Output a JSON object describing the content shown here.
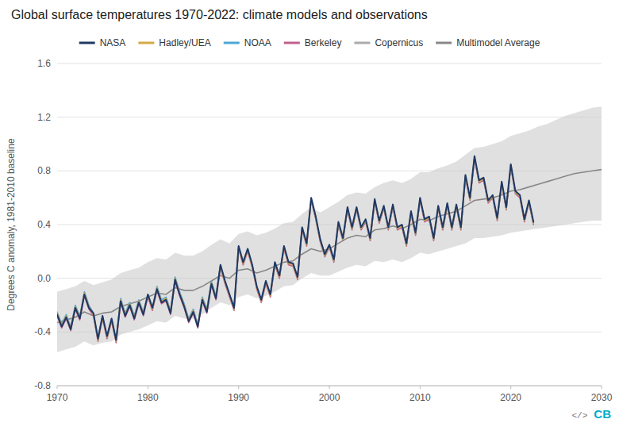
{
  "chart_data": {
    "type": "line",
    "title": "Global surface temperatures 1970-2022: climate models and observations",
    "ylabel": "Degrees C anomaly, 1981-2010 baseline",
    "xlim": [
      1970,
      2030
    ],
    "ylim": [
      -0.8,
      1.6
    ],
    "xticks": [
      1970,
      1980,
      1990,
      2000,
      2010,
      2020,
      2030
    ],
    "yticks": [
      -0.8,
      -0.4,
      {
        "value": 0.0,
        "label": "0.0"
      },
      0.4,
      0.8,
      1.2,
      1.6
    ],
    "grid": true,
    "legend": "top",
    "annotations": [
      "</>",
      "CB"
    ],
    "x": [
      1970.0,
      1970.5,
      1971.0,
      1971.5,
      1972.0,
      1972.5,
      1973.0,
      1973.5,
      1974.0,
      1974.5,
      1975.0,
      1975.5,
      1976.0,
      1976.5,
      1977.0,
      1977.5,
      1978.0,
      1978.5,
      1979.0,
      1979.5,
      1980.0,
      1980.5,
      1981.0,
      1981.5,
      1982.0,
      1982.5,
      1983.0,
      1983.5,
      1984.0,
      1984.5,
      1985.0,
      1985.5,
      1986.0,
      1986.5,
      1987.0,
      1987.5,
      1988.0,
      1988.5,
      1989.0,
      1989.5,
      1990.0,
      1990.5,
      1991.0,
      1991.5,
      1992.0,
      1992.5,
      1993.0,
      1993.5,
      1994.0,
      1994.5,
      1995.0,
      1995.5,
      1996.0,
      1996.5,
      1997.0,
      1997.5,
      1998.0,
      1998.5,
      1999.0,
      1999.5,
      2000.0,
      2000.5,
      2001.0,
      2001.5,
      2002.0,
      2002.5,
      2003.0,
      2003.5,
      2004.0,
      2004.5,
      2005.0,
      2005.5,
      2006.0,
      2006.5,
      2007.0,
      2007.5,
      2008.0,
      2008.5,
      2009.0,
      2009.5,
      2010.0,
      2010.5,
      2011.0,
      2011.5,
      2012.0,
      2012.5,
      2013.0,
      2013.5,
      2014.0,
      2014.5,
      2015.0,
      2015.5,
      2016.0,
      2016.5,
      2017.0,
      2017.5,
      2018.0,
      2018.5,
      2019.0,
      2019.5,
      2020.0,
      2020.5,
      2021.0,
      2021.5,
      2022.0,
      2022.5
    ],
    "band": {
      "color": "#cccccc",
      "x": [
        1970,
        1971,
        1972,
        1973,
        1974,
        1975,
        1976,
        1977,
        1978,
        1979,
        1980,
        1981,
        1982,
        1983,
        1984,
        1985,
        1986,
        1987,
        1988,
        1989,
        1990,
        1991,
        1992,
        1993,
        1994,
        1995,
        1996,
        1997,
        1998,
        1999,
        2000,
        2001,
        2002,
        2003,
        2004,
        2005,
        2006,
        2007,
        2008,
        2009,
        2010,
        2011,
        2012,
        2013,
        2014,
        2015,
        2016,
        2017,
        2018,
        2019,
        2020,
        2021,
        2022,
        2023,
        2024,
        2025,
        2026,
        2027,
        2028,
        2029,
        2030
      ],
      "upper": [
        -0.1,
        -0.08,
        -0.06,
        -0.02,
        -0.05,
        -0.03,
        -0.01,
        0.04,
        0.06,
        0.08,
        0.12,
        0.15,
        0.14,
        0.19,
        0.17,
        0.17,
        0.2,
        0.25,
        0.29,
        0.26,
        0.33,
        0.35,
        0.32,
        0.34,
        0.37,
        0.41,
        0.42,
        0.48,
        0.53,
        0.49,
        0.53,
        0.57,
        0.62,
        0.64,
        0.63,
        0.68,
        0.71,
        0.73,
        0.71,
        0.74,
        0.79,
        0.79,
        0.82,
        0.84,
        0.87,
        0.92,
        0.97,
        0.98,
        1.0,
        1.02,
        1.06,
        1.08,
        1.1,
        1.13,
        1.15,
        1.18,
        1.21,
        1.23,
        1.25,
        1.27,
        1.28
      ],
      "lower": [
        -0.55,
        -0.53,
        -0.51,
        -0.47,
        -0.5,
        -0.48,
        -0.47,
        -0.42,
        -0.4,
        -0.38,
        -0.35,
        -0.32,
        -0.33,
        -0.28,
        -0.3,
        -0.3,
        -0.27,
        -0.22,
        -0.18,
        -0.2,
        -0.14,
        -0.12,
        -0.15,
        -0.13,
        -0.1,
        -0.06,
        -0.05,
        0.0,
        0.04,
        0.02,
        0.02,
        0.05,
        0.08,
        0.1,
        0.09,
        0.13,
        0.12,
        0.14,
        0.12,
        0.15,
        0.19,
        0.18,
        0.2,
        0.22,
        0.24,
        0.26,
        0.3,
        0.3,
        0.31,
        0.32,
        0.34,
        0.35,
        0.36,
        0.37,
        0.38,
        0.39,
        0.4,
        0.41,
        0.42,
        0.43,
        0.43
      ]
    },
    "series": [
      {
        "name": "NASA",
        "color": "#1f3864",
        "values": [
          -0.27,
          -0.36,
          -0.29,
          -0.38,
          -0.22,
          -0.3,
          -0.12,
          -0.22,
          -0.26,
          -0.45,
          -0.28,
          -0.43,
          -0.3,
          -0.46,
          -0.17,
          -0.28,
          -0.2,
          -0.3,
          -0.18,
          -0.27,
          -0.12,
          -0.22,
          -0.08,
          -0.18,
          -0.16,
          -0.26,
          -0.01,
          -0.12,
          -0.21,
          -0.32,
          -0.25,
          -0.36,
          -0.16,
          -0.25,
          -0.04,
          -0.15,
          0.1,
          -0.02,
          -0.12,
          -0.22,
          0.24,
          0.12,
          0.22,
          0.1,
          -0.06,
          -0.16,
          -0.02,
          -0.12,
          0.12,
          0.02,
          0.24,
          0.12,
          0.11,
          0.01,
          0.38,
          0.26,
          0.6,
          0.46,
          0.29,
          0.18,
          0.25,
          0.14,
          0.42,
          0.3,
          0.53,
          0.38,
          0.53,
          0.38,
          0.44,
          0.3,
          0.59,
          0.43,
          0.54,
          0.38,
          0.55,
          0.38,
          0.4,
          0.26,
          0.5,
          0.34,
          0.6,
          0.44,
          0.46,
          0.3,
          0.54,
          0.38,
          0.56,
          0.38,
          0.55,
          0.38,
          0.77,
          0.6,
          0.91,
          0.73,
          0.75,
          0.58,
          0.62,
          0.45,
          0.72,
          0.53,
          0.85,
          0.65,
          0.62,
          0.44,
          0.58,
          0.42
        ]
      },
      {
        "name": "Hadley/UEA",
        "color": "#d4a843",
        "values": [
          -0.26,
          -0.35,
          -0.28,
          -0.37,
          -0.21,
          -0.29,
          -0.11,
          -0.21,
          -0.27,
          -0.46,
          -0.29,
          -0.44,
          -0.31,
          -0.47,
          -0.16,
          -0.27,
          -0.19,
          -0.29,
          -0.17,
          -0.26,
          -0.13,
          -0.23,
          -0.07,
          -0.17,
          -0.15,
          -0.25,
          -0.0,
          -0.11,
          -0.2,
          -0.31,
          -0.24,
          -0.35,
          -0.15,
          -0.24,
          -0.03,
          -0.14,
          0.09,
          -0.03,
          -0.13,
          -0.23,
          0.23,
          0.11,
          0.21,
          0.09,
          -0.07,
          -0.17,
          -0.03,
          -0.13,
          0.11,
          0.01,
          0.23,
          0.11,
          0.1,
          0.0,
          0.37,
          0.25,
          0.59,
          0.45,
          0.28,
          0.17,
          0.24,
          0.13,
          0.41,
          0.29,
          0.52,
          0.37,
          0.52,
          0.37,
          0.43,
          0.29,
          0.58,
          0.42,
          0.53,
          0.37,
          0.54,
          0.37,
          0.39,
          0.25,
          0.49,
          0.33,
          0.59,
          0.43,
          0.45,
          0.29,
          0.53,
          0.37,
          0.55,
          0.37,
          0.54,
          0.37,
          0.76,
          0.59,
          0.9,
          0.72,
          0.74,
          0.57,
          0.61,
          0.44,
          0.71,
          0.52,
          0.84,
          0.64,
          0.61,
          0.43,
          0.57,
          0.41
        ]
      },
      {
        "name": "NOAA",
        "color": "#4da6d4",
        "values": [
          -0.25,
          -0.34,
          -0.27,
          -0.36,
          -0.2,
          -0.28,
          -0.1,
          -0.2,
          -0.26,
          -0.45,
          -0.28,
          -0.43,
          -0.3,
          -0.46,
          -0.15,
          -0.26,
          -0.18,
          -0.28,
          -0.16,
          -0.25,
          -0.12,
          -0.22,
          -0.06,
          -0.16,
          -0.14,
          -0.24,
          0.01,
          -0.1,
          -0.19,
          -0.3,
          -0.23,
          -0.34,
          -0.14,
          -0.23,
          -0.02,
          -0.13,
          0.1,
          -0.02,
          -0.12,
          -0.22,
          0.24,
          0.12,
          0.22,
          0.1,
          -0.06,
          -0.16,
          -0.02,
          -0.12,
          0.12,
          0.02,
          0.24,
          0.12,
          0.11,
          0.01,
          0.38,
          0.26,
          0.59,
          0.45,
          0.28,
          0.17,
          0.24,
          0.13,
          0.41,
          0.29,
          0.52,
          0.37,
          0.52,
          0.37,
          0.43,
          0.29,
          0.58,
          0.42,
          0.53,
          0.37,
          0.54,
          0.37,
          0.39,
          0.25,
          0.49,
          0.33,
          0.59,
          0.43,
          0.45,
          0.29,
          0.53,
          0.37,
          0.55,
          0.37,
          0.54,
          0.37,
          0.76,
          0.59,
          0.9,
          0.72,
          0.74,
          0.57,
          0.61,
          0.44,
          0.71,
          0.52,
          0.84,
          0.64,
          0.61,
          0.43,
          0.57,
          0.41
        ]
      },
      {
        "name": "Berkeley",
        "color": "#c05f8e",
        "values": [
          -0.28,
          -0.37,
          -0.3,
          -0.39,
          -0.23,
          -0.31,
          -0.13,
          -0.23,
          -0.28,
          -0.47,
          -0.3,
          -0.45,
          -0.32,
          -0.48,
          -0.18,
          -0.29,
          -0.21,
          -0.31,
          -0.19,
          -0.28,
          -0.14,
          -0.24,
          -0.09,
          -0.19,
          -0.17,
          -0.27,
          -0.02,
          -0.13,
          -0.22,
          -0.33,
          -0.26,
          -0.37,
          -0.17,
          -0.26,
          -0.05,
          -0.16,
          0.08,
          -0.04,
          -0.14,
          -0.24,
          0.22,
          0.1,
          0.2,
          0.08,
          -0.08,
          -0.18,
          -0.04,
          -0.14,
          0.1,
          0.0,
          0.22,
          0.1,
          0.09,
          -0.01,
          0.36,
          0.24,
          0.58,
          0.44,
          0.27,
          0.16,
          0.23,
          0.12,
          0.4,
          0.28,
          0.51,
          0.36,
          0.51,
          0.36,
          0.42,
          0.28,
          0.57,
          0.41,
          0.52,
          0.36,
          0.53,
          0.36,
          0.38,
          0.24,
          0.48,
          0.32,
          0.58,
          0.42,
          0.44,
          0.28,
          0.52,
          0.36,
          0.54,
          0.36,
          0.53,
          0.36,
          0.75,
          0.58,
          0.89,
          0.71,
          0.73,
          0.56,
          0.6,
          0.43,
          0.7,
          0.51,
          0.83,
          0.63,
          0.6,
          0.42,
          0.56,
          0.4
        ]
      },
      {
        "name": "Copernicus",
        "color": "#aaaaaa",
        "values": [
          -0.26,
          -0.35,
          -0.28,
          -0.37,
          -0.21,
          -0.29,
          -0.11,
          -0.21,
          -0.27,
          -0.46,
          -0.29,
          -0.44,
          -0.31,
          -0.47,
          -0.16,
          -0.27,
          -0.19,
          -0.29,
          -0.17,
          -0.26,
          -0.13,
          -0.23,
          -0.07,
          -0.17,
          -0.15,
          -0.25,
          -0.0,
          -0.11,
          -0.2,
          -0.31,
          -0.24,
          -0.35,
          -0.15,
          -0.24,
          -0.03,
          -0.14,
          0.09,
          -0.03,
          -0.13,
          -0.23,
          0.23,
          0.11,
          0.21,
          0.09,
          -0.07,
          -0.17,
          -0.03,
          -0.13,
          0.11,
          0.01,
          0.23,
          0.11,
          0.1,
          0.0,
          0.37,
          0.25,
          0.59,
          0.45,
          0.28,
          0.17,
          0.24,
          0.13,
          0.41,
          0.29,
          0.52,
          0.37,
          0.52,
          0.37,
          0.43,
          0.29,
          0.58,
          0.42,
          0.53,
          0.37,
          0.54,
          0.37,
          0.39,
          0.25,
          0.49,
          0.33,
          0.59,
          0.43,
          0.45,
          0.29,
          0.53,
          0.37,
          0.55,
          0.37,
          0.54,
          0.37,
          0.76,
          0.59,
          0.9,
          0.72,
          0.74,
          0.57,
          0.61,
          0.44,
          0.71,
          0.52,
          0.84,
          0.64,
          0.61,
          0.43,
          0.57,
          0.41
        ]
      },
      {
        "name": "Multimodel Average",
        "color": "#888888",
        "x": [
          1970,
          1971,
          1972,
          1973,
          1974,
          1975,
          1976,
          1977,
          1978,
          1979,
          1980,
          1981,
          1982,
          1983,
          1984,
          1985,
          1986,
          1987,
          1988,
          1989,
          1990,
          1991,
          1992,
          1993,
          1994,
          1995,
          1996,
          1997,
          1998,
          1999,
          2000,
          2001,
          2002,
          2003,
          2004,
          2005,
          2006,
          2007,
          2008,
          2009,
          2010,
          2011,
          2012,
          2013,
          2014,
          2015,
          2016,
          2017,
          2018,
          2019,
          2020,
          2021,
          2022,
          2023,
          2024,
          2025,
          2026,
          2027,
          2028,
          2029,
          2030
        ],
        "values": [
          -0.33,
          -0.31,
          -0.29,
          -0.25,
          -0.28,
          -0.26,
          -0.25,
          -0.21,
          -0.19,
          -0.17,
          -0.14,
          -0.11,
          -0.12,
          -0.07,
          -0.09,
          -0.09,
          -0.06,
          -0.02,
          0.02,
          -0.0,
          0.06,
          0.07,
          0.04,
          0.06,
          0.09,
          0.12,
          0.13,
          0.18,
          0.22,
          0.2,
          0.22,
          0.26,
          0.3,
          0.32,
          0.31,
          0.36,
          0.37,
          0.39,
          0.37,
          0.4,
          0.44,
          0.43,
          0.46,
          0.48,
          0.5,
          0.54,
          0.58,
          0.59,
          0.6,
          0.62,
          0.65,
          0.66,
          0.68,
          0.7,
          0.72,
          0.74,
          0.76,
          0.78,
          0.79,
          0.8,
          0.81
        ]
      }
    ]
  }
}
